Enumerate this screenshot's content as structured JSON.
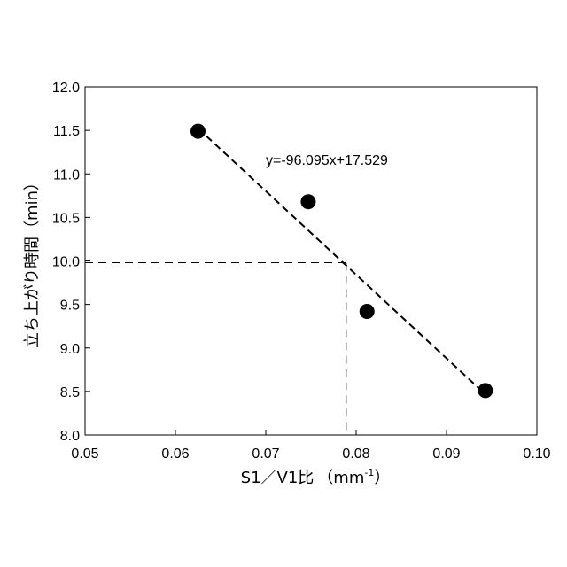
{
  "chart_data": {
    "type": "scatter",
    "xlabel": "S1／V1比",
    "xunit_base": "（mm",
    "xunit_sup": "-1",
    "xunit_close": "）",
    "ylabel": "立ち上がり時間（min）",
    "xlim": [
      0.05,
      0.1
    ],
    "ylim": [
      8.0,
      12.0
    ],
    "x_ticks": [
      "0.05",
      "0.06",
      "0.07",
      "0.08",
      "0.09",
      "0.10"
    ],
    "y_ticks": [
      "8.0",
      "8.5",
      "9.0",
      "9.5",
      "10.0",
      "10.5",
      "11.0",
      "11.5",
      "12.0"
    ],
    "grid": false,
    "series": [
      {
        "points": [
          {
            "x": 0.0625,
            "y": 11.49
          },
          {
            "x": 0.0747,
            "y": 10.68
          },
          {
            "x": 0.0812,
            "y": 9.42
          },
          {
            "x": 0.0943,
            "y": 8.51
          }
        ],
        "color": "#000000"
      }
    ],
    "trendline": {
      "equation": "y=-96.095x+17.529",
      "slope": -96.095,
      "intercept": 17.529,
      "x_range": [
        0.0625,
        0.0943
      ],
      "style": "dashed"
    },
    "reference_lines": {
      "y": 9.98,
      "x": 0.0789,
      "style": "dashed"
    }
  }
}
